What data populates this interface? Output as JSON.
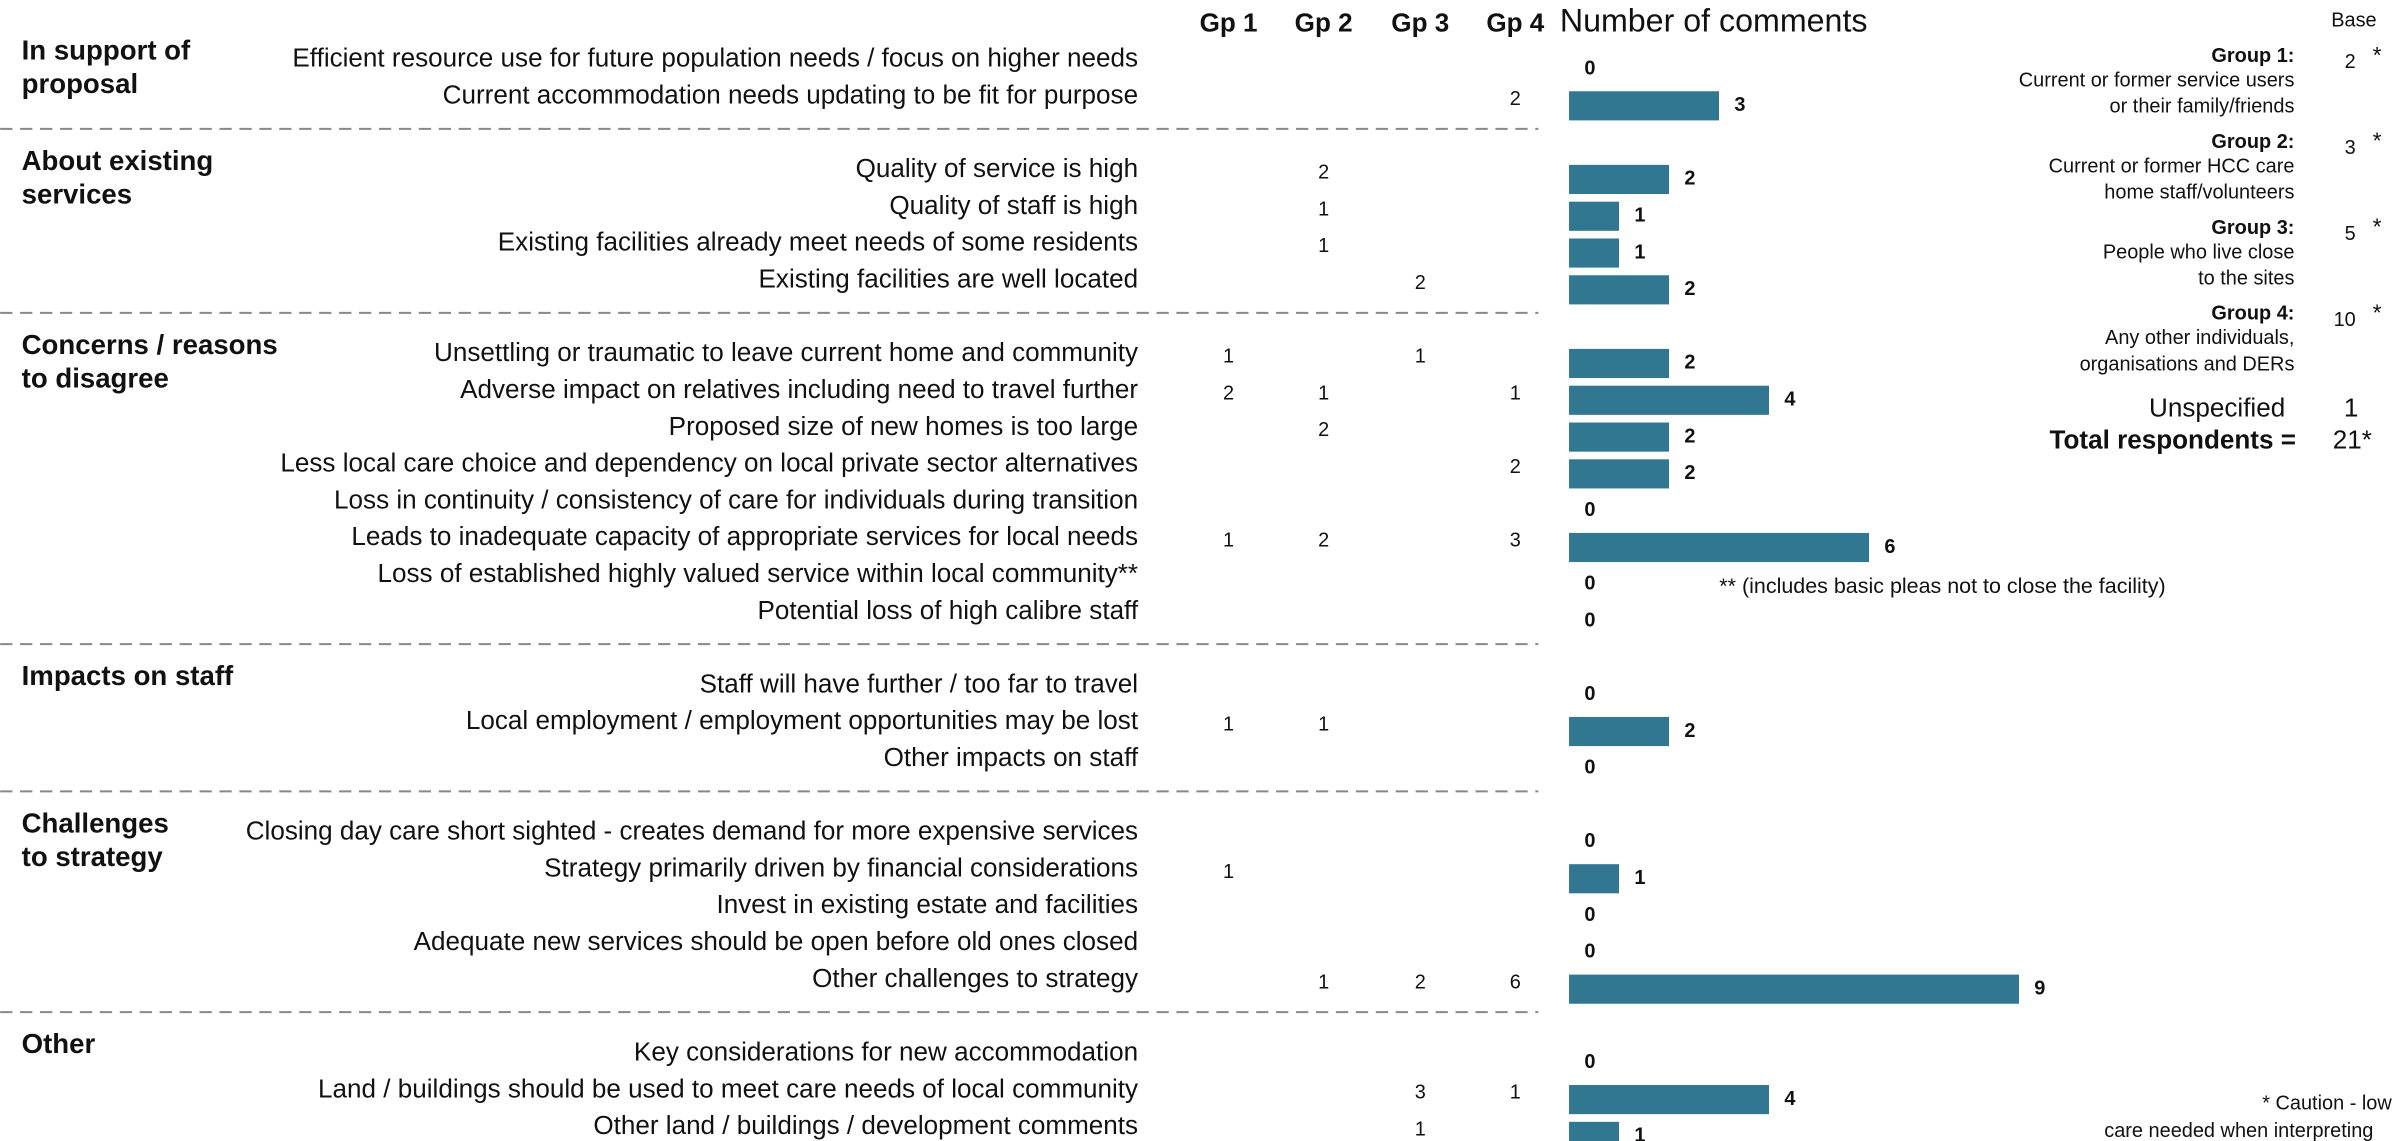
{
  "chart_data": {
    "type": "bar",
    "title": "Number of comments",
    "columns": [
      "Gp 1",
      "Gp 2",
      "Gp 3",
      "Gp 4"
    ],
    "color": "#317791",
    "sections": [
      {
        "label": [
          "In support of",
          "proposal"
        ],
        "categories": [
          "Efficient resource use for future population needs / focus on higher needs",
          "Current accommodation needs updating to be fit for purpose"
        ],
        "table": [
          [
            null,
            null,
            null,
            null
          ],
          [
            null,
            null,
            null,
            2
          ]
        ],
        "values": [
          0,
          3
        ]
      },
      {
        "label": [
          "About existing",
          "services"
        ],
        "categories": [
          "Quality of service is high",
          "Quality of staff is high",
          "Existing facilities already meet needs of some residents",
          "Existing facilities are well located"
        ],
        "table": [
          [
            null,
            2,
            null,
            null
          ],
          [
            null,
            1,
            null,
            null
          ],
          [
            null,
            1,
            null,
            null
          ],
          [
            null,
            null,
            2,
            null
          ]
        ],
        "values": [
          2,
          1,
          1,
          2
        ]
      },
      {
        "label": [
          "Concerns / reasons",
          "to disagree"
        ],
        "categories": [
          "Unsettling or traumatic to leave current home and community",
          "Adverse impact on relatives including need to travel further",
          "Proposed size of new homes is too large",
          "Less local care choice and dependency on local private sector alternatives",
          "Loss in continuity / consistency of care for individuals during transition",
          "Leads to inadequate capacity of appropriate services for local needs",
          "Loss of established highly valued service within local community**",
          "Potential loss of high calibre staff"
        ],
        "table": [
          [
            1,
            null,
            1,
            null
          ],
          [
            2,
            1,
            null,
            1
          ],
          [
            null,
            2,
            null,
            null
          ],
          [
            null,
            null,
            null,
            2
          ],
          [
            null,
            null,
            null,
            null
          ],
          [
            1,
            2,
            null,
            3
          ],
          [
            null,
            null,
            null,
            null
          ],
          [
            null,
            null,
            null,
            null
          ]
        ],
        "values": [
          2,
          4,
          2,
          2,
          0,
          6,
          0,
          0
        ]
      },
      {
        "label": [
          "Impacts on staff"
        ],
        "categories": [
          "Staff will have further / too far to travel",
          "Local employment / employment opportunities may be lost",
          "Other impacts on staff"
        ],
        "table": [
          [
            null,
            null,
            null,
            null
          ],
          [
            1,
            1,
            null,
            null
          ],
          [
            null,
            null,
            null,
            null
          ]
        ],
        "values": [
          0,
          2,
          0
        ]
      },
      {
        "label": [
          "Challenges",
          "to strategy"
        ],
        "categories": [
          "Closing day care short sighted - creates demand for more expensive services",
          "Strategy primarily driven by financial considerations",
          "Invest in existing estate and facilities",
          "Adequate new services should be open before old ones closed",
          "Other challenges to strategy"
        ],
        "table": [
          [
            null,
            null,
            null,
            null
          ],
          [
            1,
            null,
            null,
            null
          ],
          [
            null,
            null,
            null,
            null
          ],
          [
            null,
            null,
            null,
            null
          ],
          [
            null,
            1,
            2,
            6
          ]
        ],
        "values": [
          0,
          1,
          0,
          0,
          9
        ]
      },
      {
        "label": [
          "Other"
        ],
        "categories": [
          "Key considerations for new accommodation",
          "Land / buildings should be used to meet care needs of local community",
          "Other land / buildings / development comments"
        ],
        "table": [
          [
            null,
            null,
            null,
            null
          ],
          [
            null,
            null,
            3,
            1
          ],
          [
            null,
            null,
            1,
            null
          ]
        ],
        "values": [
          0,
          4,
          1
        ]
      }
    ],
    "note": "** (includes basic pleas not to close the facility)",
    "base_title": "Base",
    "groups": [
      {
        "name": "Group 1:",
        "description": [
          "Current or former service users",
          "or their family/friends"
        ],
        "base": 2,
        "flag": "*"
      },
      {
        "name": "Group 2:",
        "description": [
          "Current or former HCC care",
          "home staff/volunteers"
        ],
        "base": 3,
        "flag": "*"
      },
      {
        "name": "Group 3:",
        "description": [
          "People who live close",
          "to the sites"
        ],
        "base": 5,
        "flag": "*"
      },
      {
        "name": "Group 4:",
        "description": [
          "Any other individuals,",
          "organisations and DERs"
        ],
        "base": 10,
        "flag": "*"
      }
    ],
    "unspecified_label": "Unspecified",
    "unspecified": 1,
    "total_label": "Total respondents =",
    "total": "21*",
    "footnote": [
      "* Caution - low",
      "care needed when interpreting"
    ]
  }
}
